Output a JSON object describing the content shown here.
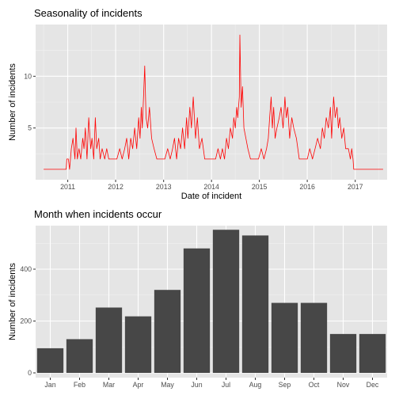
{
  "chart_data": [
    {
      "type": "line",
      "title": "Seasonality of incidents",
      "xlabel": "Date of incident",
      "ylabel": "Number of incidents",
      "color": "#ff0000",
      "panel_background": "#e5e5e5",
      "grid": true,
      "xlim": [
        "2010-05-01",
        "2017-09-01"
      ],
      "ylim": [
        0,
        15
      ],
      "x_ticks": [
        "2011",
        "2012",
        "2013",
        "2014",
        "2015",
        "2016",
        "2017"
      ],
      "y_ticks": [
        "5",
        "10"
      ],
      "series": [
        {
          "x": [
            "2010-07-01",
            "2010-12-20",
            "2010-12-25",
            "2011-01-05",
            "2011-01-15",
            "2011-01-28",
            "2011-02-10",
            "2011-02-25",
            "2011-03-05",
            "2011-03-15",
            "2011-03-28",
            "2011-04-10",
            "2011-04-25",
            "2011-05-05",
            "2011-05-15",
            "2011-05-28",
            "2011-06-10",
            "2011-06-25",
            "2011-07-05",
            "2011-07-18",
            "2011-07-30",
            "2011-08-10",
            "2011-08-25",
            "2011-09-05",
            "2011-09-20",
            "2011-10-10",
            "2011-10-25",
            "2011-11-10",
            "2011-12-01",
            "2011-12-20",
            "2012-01-10",
            "2012-02-01",
            "2012-02-20",
            "2012-03-10",
            "2012-03-25",
            "2012-04-10",
            "2012-04-25",
            "2012-05-10",
            "2012-05-25",
            "2012-06-10",
            "2012-06-25",
            "2012-07-05",
            "2012-07-15",
            "2012-07-22",
            "2012-08-01",
            "2012-08-10",
            "2012-08-20",
            "2012-09-01",
            "2012-09-15",
            "2012-10-01",
            "2012-10-20",
            "2012-11-10",
            "2012-12-01",
            "2012-12-20",
            "2013-01-10",
            "2013-02-01",
            "2013-02-20",
            "2013-03-10",
            "2013-03-25",
            "2013-04-10",
            "2013-04-25",
            "2013-05-10",
            "2013-05-25",
            "2013-06-10",
            "2013-06-25",
            "2013-07-05",
            "2013-07-20",
            "2013-08-01",
            "2013-08-15",
            "2013-09-01",
            "2013-09-15",
            "2013-10-01",
            "2013-10-20",
            "2013-11-10",
            "2013-12-01",
            "2013-12-20",
            "2014-01-10",
            "2014-02-01",
            "2014-02-20",
            "2014-03-10",
            "2014-03-25",
            "2014-04-10",
            "2014-04-25",
            "2014-05-10",
            "2014-05-25",
            "2014-06-10",
            "2014-06-20",
            "2014-07-01",
            "2014-07-12",
            "2014-07-20",
            "2014-08-01",
            "2014-08-05",
            "2014-08-15",
            "2014-08-25",
            "2014-09-05",
            "2014-09-20",
            "2014-10-05",
            "2014-10-25",
            "2014-11-15",
            "2014-12-05",
            "2014-12-25",
            "2015-01-15",
            "2015-02-05",
            "2015-02-25",
            "2015-03-10",
            "2015-03-20",
            "2015-04-01",
            "2015-04-10",
            "2015-04-20",
            "2015-05-01",
            "2015-05-15",
            "2015-06-01",
            "2015-06-15",
            "2015-07-01",
            "2015-07-15",
            "2015-07-25",
            "2015-08-05",
            "2015-08-20",
            "2015-09-05",
            "2015-09-20",
            "2015-10-10",
            "2015-11-01",
            "2015-11-20",
            "2015-12-10",
            "2016-01-01",
            "2016-01-20",
            "2016-02-10",
            "2016-03-01",
            "2016-03-20",
            "2016-04-10",
            "2016-04-25",
            "2016-05-10",
            "2016-05-25",
            "2016-06-10",
            "2016-06-25",
            "2016-07-05",
            "2016-07-20",
            "2016-08-01",
            "2016-08-15",
            "2016-08-25",
            "2016-09-05",
            "2016-09-20",
            "2016-10-05",
            "2016-10-20",
            "2016-11-10",
            "2016-11-25",
            "2016-12-05",
            "2016-12-15",
            "2016-12-20",
            "2017-08-01"
          ],
          "y": [
            1,
            1,
            2,
            2,
            1,
            3,
            4,
            2,
            5,
            2,
            3,
            2,
            4,
            3,
            5,
            2,
            6,
            3,
            4,
            2,
            6,
            3,
            4,
            2,
            3,
            2,
            3,
            2,
            2,
            2,
            2,
            3,
            2,
            3,
            4,
            2,
            4,
            3,
            5,
            3,
            6,
            4,
            7,
            5,
            8,
            11,
            6,
            5,
            7,
            4,
            3,
            2,
            2,
            2,
            2,
            3,
            2,
            3,
            4,
            2,
            4,
            3,
            5,
            3,
            6,
            4,
            7,
            5,
            8,
            4,
            6,
            3,
            4,
            2,
            2,
            2,
            2,
            2,
            3,
            2,
            3,
            2,
            4,
            3,
            5,
            4,
            6,
            5,
            7,
            6,
            8,
            14,
            7,
            9,
            5,
            4,
            3,
            2,
            2,
            2,
            2,
            3,
            2,
            3,
            4,
            6,
            8,
            5,
            7,
            4,
            5,
            6,
            7,
            5,
            8,
            6,
            7,
            4,
            6,
            5,
            4,
            2,
            2,
            2,
            2,
            3,
            2,
            3,
            4,
            3,
            5,
            4,
            6,
            5,
            7,
            4,
            8,
            6,
            7,
            5,
            6,
            4,
            5,
            3,
            3,
            2,
            3,
            2,
            1,
            1
          ]
        }
      ]
    },
    {
      "type": "bar",
      "title": "Month when incidents occur",
      "xlabel": "",
      "ylabel": "Number of incidents",
      "bar_color": "#474747",
      "panel_background": "#e5e5e5",
      "grid": true,
      "ylim": [
        0,
        600
      ],
      "y_ticks": [
        0,
        200,
        400
      ],
      "categories": [
        "Jan",
        "Feb",
        "Mar",
        "Apr",
        "May",
        "Jun",
        "Jul",
        "Aug",
        "Sep",
        "Oct",
        "Nov",
        "Dec"
      ],
      "values": [
        95,
        130,
        252,
        218,
        320,
        480,
        552,
        530,
        270,
        270,
        150,
        150
      ]
    }
  ]
}
